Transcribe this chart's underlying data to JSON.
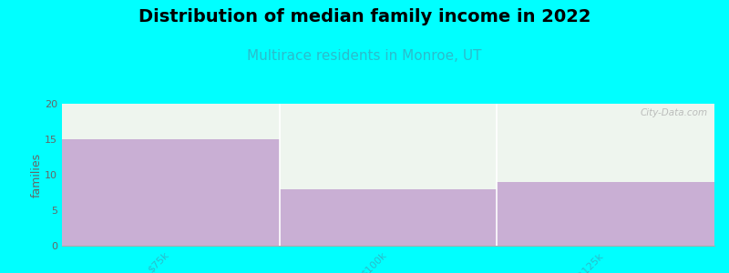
{
  "title": "Distribution of median family income in 2022",
  "subtitle": "Multirace residents in Monroe, UT",
  "categories": [
    "$75k",
    "$100k",
    ">$125k"
  ],
  "values": [
    15,
    8,
    9
  ],
  "bar_color": "#c9afd4",
  "background_color": "#00ffff",
  "plot_bg_color": "#eef5ee",
  "ylabel": "families",
  "ylim": [
    0,
    20
  ],
  "yticks": [
    0,
    5,
    10,
    15,
    20
  ],
  "title_fontsize": 14,
  "subtitle_fontsize": 11,
  "subtitle_color": "#2bbccc",
  "ylabel_fontsize": 9,
  "tick_fontsize": 8,
  "tick_color": "#2bbccc",
  "ytick_color": "#666666",
  "watermark": "City-Data.com"
}
